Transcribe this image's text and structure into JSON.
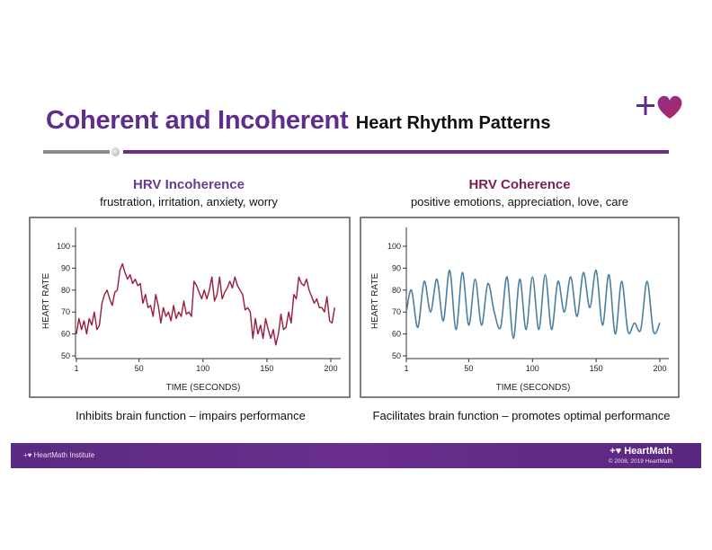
{
  "header": {
    "title_main": "Coherent and Incoherent",
    "title_sub": "Heart Rhythm Patterns",
    "logo_icon": "plus-heart-logo-icon",
    "accent_color": "#5f2d8c"
  },
  "panels": [
    {
      "heading": "HRV Incoherence",
      "heading_color": "#6a3a92",
      "subheading": "frustration, irritation, anxiety, worry",
      "caption": "Inhibits brain function – impairs performance"
    },
    {
      "heading": "HRV Coherence",
      "heading_color": "#7a1f55",
      "subheading": "positive emotions, appreciation, love, care",
      "caption": "Facilitates brain function – promotes optimal performance"
    }
  ],
  "footer": {
    "left_text": "+♥ HeartMath Institute",
    "brand": "+♥ HeartMath",
    "copyright": "© 2008, 2019 HeartMath"
  },
  "chart_data": [
    {
      "type": "line",
      "title": "HRV Incoherence",
      "xlabel": "TIME (SECONDS)",
      "ylabel": "HEART RATE",
      "xticks": [
        "1",
        "50",
        "100",
        "150",
        "200"
      ],
      "yticks": [
        "50",
        "60",
        "70",
        "80",
        "90",
        "100"
      ],
      "xlim": [
        1,
        205
      ],
      "ylim": [
        50,
        105
      ],
      "grid": false,
      "color": "#9b1b3a",
      "x": [
        1,
        3,
        5,
        7,
        9,
        11,
        13,
        15,
        17,
        19,
        21,
        23,
        25,
        27,
        29,
        31,
        33,
        35,
        37,
        39,
        41,
        43,
        45,
        47,
        49,
        51,
        53,
        55,
        57,
        59,
        61,
        63,
        65,
        67,
        69,
        71,
        73,
        75,
        77,
        79,
        81,
        83,
        85,
        87,
        89,
        91,
        93,
        95,
        97,
        99,
        101,
        103,
        105,
        107,
        109,
        111,
        113,
        115,
        117,
        119,
        121,
        123,
        125,
        127,
        129,
        131,
        133,
        135,
        137,
        139,
        141,
        143,
        145,
        147,
        149,
        151,
        153,
        155,
        157,
        159,
        161,
        163,
        165,
        167,
        169,
        171,
        173,
        175,
        177,
        179,
        181,
        183,
        185,
        187,
        189,
        191,
        193,
        195,
        197,
        199,
        201,
        203
      ],
      "values": [
        60,
        67,
        62,
        66,
        60,
        67,
        64,
        70,
        62,
        64,
        74,
        78,
        80,
        76,
        73,
        79,
        80,
        89,
        92,
        88,
        85,
        87,
        83,
        85,
        82,
        83,
        74,
        78,
        72,
        73,
        68,
        78,
        73,
        65,
        72,
        68,
        70,
        66,
        73,
        67,
        70,
        68,
        75,
        69,
        70,
        68,
        84,
        82,
        79,
        76,
        80,
        76,
        80,
        86,
        75,
        78,
        86,
        76,
        79,
        81,
        84,
        81,
        86,
        82,
        80,
        78,
        71,
        72,
        70,
        58,
        67,
        60,
        64,
        58,
        67,
        62,
        58,
        62,
        55,
        60,
        69,
        62,
        63,
        70,
        65,
        78,
        76,
        86,
        83,
        82,
        85,
        80,
        77,
        74,
        76,
        72,
        72,
        70,
        77,
        66,
        65,
        72
      ]
    },
    {
      "type": "line",
      "title": "HRV Coherence",
      "xlabel": "TIME (SECONDS)",
      "ylabel": "HEART RATE",
      "xticks": [
        "1",
        "50",
        "100",
        "150",
        "200"
      ],
      "yticks": [
        "50",
        "60",
        "70",
        "80",
        "90",
        "100"
      ],
      "xlim": [
        1,
        205
      ],
      "ylim": [
        50,
        105
      ],
      "grid": false,
      "color": "#4a7fa0",
      "x": [
        1,
        5,
        10,
        15,
        20,
        25,
        30,
        35,
        40,
        45,
        50,
        55,
        60,
        65,
        70,
        75,
        80,
        85,
        90,
        95,
        100,
        105,
        110,
        115,
        120,
        125,
        130,
        135,
        140,
        145,
        150,
        155,
        160,
        165,
        170,
        175,
        180,
        185,
        190,
        195,
        200
      ],
      "values": [
        70,
        80,
        63,
        84,
        70,
        85,
        66,
        89,
        62,
        88,
        64,
        85,
        64,
        83,
        70,
        63,
        86,
        58,
        85,
        62,
        86,
        62,
        87,
        62,
        84,
        70,
        86,
        68,
        88,
        72,
        89,
        64,
        87,
        60,
        84,
        61,
        65,
        62,
        84,
        61,
        65
      ]
    }
  ]
}
